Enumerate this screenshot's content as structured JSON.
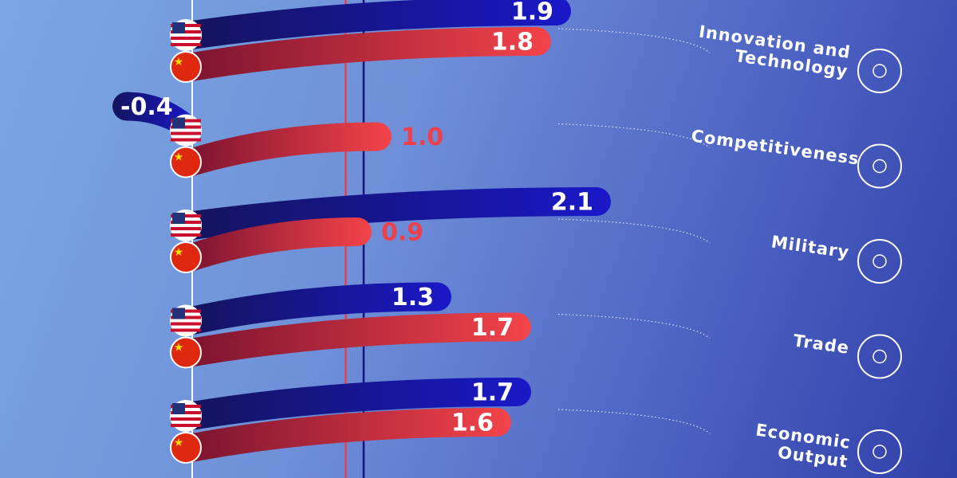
{
  "chart_data": {
    "type": "curved-bar",
    "categories": [
      "Innovation and Technology",
      "Competitiveness",
      "Military",
      "Trade",
      "Economic Output"
    ],
    "series": [
      {
        "name": "United States",
        "color": "#1414c0",
        "values": [
          1.9,
          -0.4,
          2.1,
          1.3,
          1.7
        ],
        "value_labels": [
          "1.9",
          "-0.4",
          "2.1",
          "1.3",
          "1.7"
        ]
      },
      {
        "name": "China",
        "color": "#ef3f4a",
        "values": [
          1.8,
          1.0,
          0.9,
          1.7,
          1.6
        ],
        "value_labels": [
          "1.8",
          "1.0",
          "0.9",
          "1.7",
          "1.6"
        ]
      }
    ],
    "xlim": [
      -0.964,
      3.836
    ],
    "reference_lines": [
      {
        "value": 0.77,
        "color": "#e8404a"
      },
      {
        "value": 0.86,
        "color": "#14147a"
      }
    ]
  }
}
